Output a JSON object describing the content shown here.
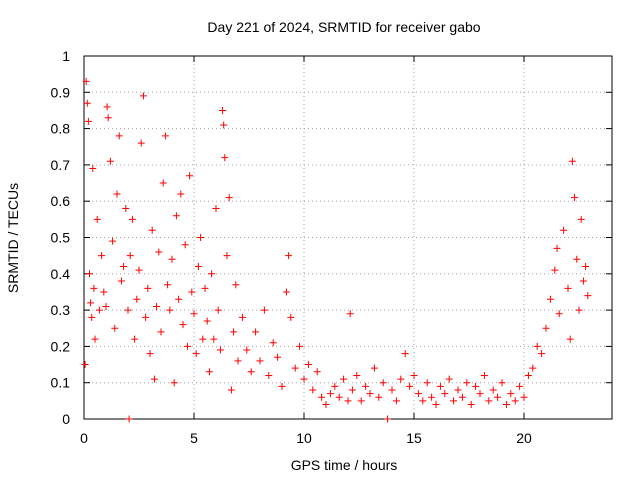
{
  "chart_data": {
    "type": "scatter",
    "title": "Day 221 of 2024, SRMTID for receiver gabo",
    "xlabel": "GPS time / hours",
    "ylabel": "SRMTID / TECUs",
    "xlim": [
      0,
      24
    ],
    "ylim": [
      0,
      1
    ],
    "xticks": [
      0,
      5,
      10,
      15,
      20
    ],
    "yticks": [
      0,
      0.1,
      0.2,
      0.3,
      0.4,
      0.5,
      0.6,
      0.7,
      0.8,
      0.9,
      1
    ],
    "ytick_labels": [
      "0",
      "0.1",
      "0.2",
      "0.3",
      "0.4",
      "0.5",
      "0.6",
      "0.7",
      "0.8",
      "0.9",
      "1"
    ],
    "grid": true,
    "marker": "+",
    "color": "#ff0000",
    "series": [
      {
        "name": "gabo",
        "points": [
          [
            0.05,
            0.15
          ],
          [
            0.1,
            0.93
          ],
          [
            0.15,
            0.87
          ],
          [
            0.2,
            0.82
          ],
          [
            0.25,
            0.4
          ],
          [
            0.3,
            0.32
          ],
          [
            0.35,
            0.28
          ],
          [
            0.4,
            0.69
          ],
          [
            0.45,
            0.36
          ],
          [
            0.5,
            0.22
          ],
          [
            0.6,
            0.55
          ],
          [
            0.7,
            0.3
          ],
          [
            0.8,
            0.45
          ],
          [
            0.9,
            0.35
          ],
          [
            1.0,
            0.31
          ],
          [
            1.05,
            0.86
          ],
          [
            1.1,
            0.83
          ],
          [
            1.2,
            0.71
          ],
          [
            1.3,
            0.49
          ],
          [
            1.4,
            0.25
          ],
          [
            1.5,
            0.62
          ],
          [
            1.6,
            0.78
          ],
          [
            1.7,
            0.38
          ],
          [
            1.8,
            0.42
          ],
          [
            1.9,
            0.58
          ],
          [
            2.0,
            0.3
          ],
          [
            2.05,
            0.0
          ],
          [
            2.1,
            0.45
          ],
          [
            2.2,
            0.55
          ],
          [
            2.3,
            0.22
          ],
          [
            2.4,
            0.33
          ],
          [
            2.5,
            0.41
          ],
          [
            2.6,
            0.76
          ],
          [
            2.7,
            0.89
          ],
          [
            2.8,
            0.28
          ],
          [
            2.9,
            0.36
          ],
          [
            3.0,
            0.18
          ],
          [
            3.1,
            0.52
          ],
          [
            3.2,
            0.11
          ],
          [
            3.3,
            0.31
          ],
          [
            3.4,
            0.46
          ],
          [
            3.5,
            0.24
          ],
          [
            3.6,
            0.65
          ],
          [
            3.7,
            0.78
          ],
          [
            3.8,
            0.37
          ],
          [
            3.9,
            0.3
          ],
          [
            4.0,
            0.44
          ],
          [
            4.1,
            0.1
          ],
          [
            4.2,
            0.56
          ],
          [
            4.3,
            0.33
          ],
          [
            4.4,
            0.62
          ],
          [
            4.5,
            0.26
          ],
          [
            4.6,
            0.48
          ],
          [
            4.7,
            0.2
          ],
          [
            4.8,
            0.67
          ],
          [
            4.9,
            0.35
          ],
          [
            5.0,
            0.29
          ],
          [
            5.1,
            0.18
          ],
          [
            5.2,
            0.42
          ],
          [
            5.3,
            0.5
          ],
          [
            5.4,
            0.22
          ],
          [
            5.5,
            0.36
          ],
          [
            5.6,
            0.27
          ],
          [
            5.7,
            0.13
          ],
          [
            5.8,
            0.4
          ],
          [
            5.9,
            0.22
          ],
          [
            6.0,
            0.58
          ],
          [
            6.1,
            0.3
          ],
          [
            6.2,
            0.19
          ],
          [
            6.3,
            0.85
          ],
          [
            6.35,
            0.81
          ],
          [
            6.4,
            0.72
          ],
          [
            6.5,
            0.45
          ],
          [
            6.6,
            0.61
          ],
          [
            6.7,
            0.08
          ],
          [
            6.8,
            0.24
          ],
          [
            6.9,
            0.37
          ],
          [
            7.0,
            0.16
          ],
          [
            7.2,
            0.28
          ],
          [
            7.4,
            0.19
          ],
          [
            7.6,
            0.13
          ],
          [
            7.8,
            0.24
          ],
          [
            8.0,
            0.16
          ],
          [
            8.2,
            0.3
          ],
          [
            8.4,
            0.12
          ],
          [
            8.6,
            0.21
          ],
          [
            8.8,
            0.17
          ],
          [
            9.0,
            0.09
          ],
          [
            9.2,
            0.35
          ],
          [
            9.3,
            0.45
          ],
          [
            9.4,
            0.28
          ],
          [
            9.6,
            0.14
          ],
          [
            9.8,
            0.2
          ],
          [
            10.0,
            0.11
          ],
          [
            10.2,
            0.15
          ],
          [
            10.4,
            0.08
          ],
          [
            10.6,
            0.13
          ],
          [
            10.8,
            0.06
          ],
          [
            11.0,
            0.04
          ],
          [
            11.2,
            0.07
          ],
          [
            11.4,
            0.09
          ],
          [
            11.6,
            0.06
          ],
          [
            11.8,
            0.11
          ],
          [
            12.0,
            0.05
          ],
          [
            12.1,
            0.29
          ],
          [
            12.2,
            0.08
          ],
          [
            12.4,
            0.12
          ],
          [
            12.6,
            0.05
          ],
          [
            12.8,
            0.09
          ],
          [
            13.0,
            0.07
          ],
          [
            13.2,
            0.14
          ],
          [
            13.4,
            0.06
          ],
          [
            13.6,
            0.1
          ],
          [
            13.8,
            0.0
          ],
          [
            14.0,
            0.08
          ],
          [
            14.2,
            0.05
          ],
          [
            14.4,
            0.11
          ],
          [
            14.6,
            0.18
          ],
          [
            14.8,
            0.09
          ],
          [
            15.0,
            0.12
          ],
          [
            15.2,
            0.07
          ],
          [
            15.4,
            0.05
          ],
          [
            15.6,
            0.1
          ],
          [
            15.8,
            0.06
          ],
          [
            16.0,
            0.04
          ],
          [
            16.2,
            0.09
          ],
          [
            16.4,
            0.07
          ],
          [
            16.6,
            0.11
          ],
          [
            16.8,
            0.05
          ],
          [
            17.0,
            0.08
          ],
          [
            17.2,
            0.06
          ],
          [
            17.4,
            0.1
          ],
          [
            17.6,
            0.04
          ],
          [
            17.8,
            0.09
          ],
          [
            18.0,
            0.07
          ],
          [
            18.2,
            0.12
          ],
          [
            18.4,
            0.05
          ],
          [
            18.6,
            0.08
          ],
          [
            18.8,
            0.06
          ],
          [
            19.0,
            0.1
          ],
          [
            19.2,
            0.04
          ],
          [
            19.4,
            0.07
          ],
          [
            19.6,
            0.05
          ],
          [
            19.8,
            0.09
          ],
          [
            20.0,
            0.06
          ],
          [
            20.2,
            0.12
          ],
          [
            20.4,
            0.14
          ],
          [
            20.6,
            0.2
          ],
          [
            20.8,
            0.18
          ],
          [
            21.0,
            0.25
          ],
          [
            21.2,
            0.33
          ],
          [
            21.4,
            0.41
          ],
          [
            21.5,
            0.47
          ],
          [
            21.6,
            0.29
          ],
          [
            21.8,
            0.52
          ],
          [
            22.0,
            0.36
          ],
          [
            22.1,
            0.22
          ],
          [
            22.2,
            0.71
          ],
          [
            22.3,
            0.61
          ],
          [
            22.4,
            0.44
          ],
          [
            22.5,
            0.3
          ],
          [
            22.6,
            0.55
          ],
          [
            22.7,
            0.38
          ],
          [
            22.8,
            0.42
          ],
          [
            22.9,
            0.34
          ]
        ]
      }
    ]
  }
}
